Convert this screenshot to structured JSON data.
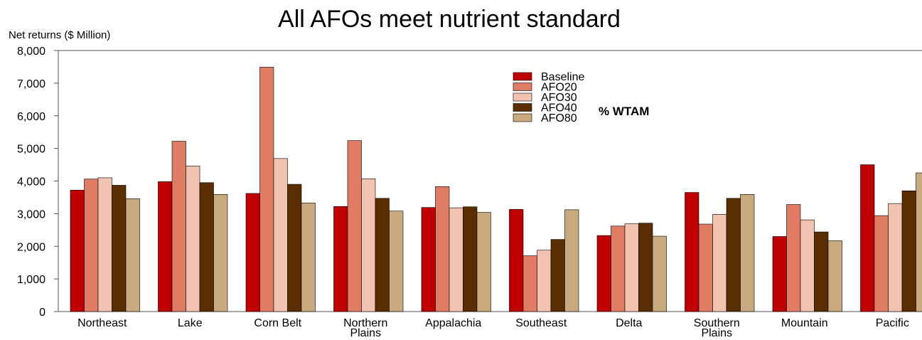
{
  "chart_data": {
    "type": "bar",
    "title": "All AFOs meet nutrient standard",
    "ylabel": "Net returns ($ Million)",
    "xlabel": "",
    "ylim": [
      0,
      8000
    ],
    "yticks": [
      0,
      1000,
      2000,
      3000,
      4000,
      5000,
      6000,
      7000,
      8000
    ],
    "ytick_labels": [
      "0",
      "1,000",
      "2,000",
      "3,000",
      "4,000",
      "5,000",
      "6,000",
      "7,000",
      "8,000"
    ],
    "grid": false,
    "legend_position": "top-center",
    "annotation": "% WTAM",
    "categories": [
      [
        "Northeast"
      ],
      [
        "Lake"
      ],
      [
        "Corn Belt"
      ],
      [
        "Northern",
        "Plains"
      ],
      [
        "Appalachia"
      ],
      [
        "Southeast"
      ],
      [
        "Delta"
      ],
      [
        "Southern",
        "Plains"
      ],
      [
        "Mountain"
      ],
      [
        "Pacific"
      ]
    ],
    "series": [
      {
        "name": "Baseline",
        "color": "#c00000",
        "values": [
          3720,
          3980,
          3620,
          3220,
          3190,
          3130,
          2330,
          3650,
          2300,
          4500
        ]
      },
      {
        "name": "AFO20",
        "color": "#e07b64",
        "values": [
          4060,
          5220,
          7490,
          5240,
          3830,
          1710,
          2620,
          2680,
          3280,
          2940
        ]
      },
      {
        "name": "AFO30",
        "color": "#f2c3b0",
        "values": [
          4100,
          4460,
          4690,
          4070,
          3180,
          1880,
          2690,
          2980,
          2810,
          3310
        ]
      },
      {
        "name": "AFO40",
        "color": "#5a2e00",
        "values": [
          3870,
          3950,
          3900,
          3470,
          3210,
          2210,
          2710,
          3470,
          2440,
          3700
        ]
      },
      {
        "name": "AFO80",
        "color": "#c9a97e",
        "values": [
          3460,
          3590,
          3330,
          3080,
          3040,
          3120,
          2310,
          3590,
          2170,
          4250
        ]
      }
    ]
  }
}
